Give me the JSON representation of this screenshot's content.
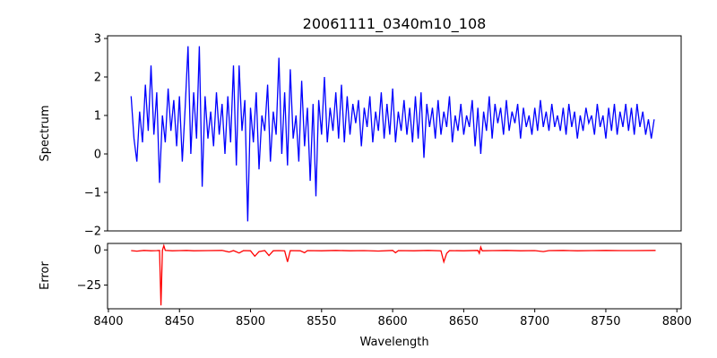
{
  "chart_data": [
    {
      "type": "line",
      "title": "20061111_0340m10_108",
      "xlabel": "",
      "ylabel": "Spectrum",
      "color": "#0000ff",
      "xlim": [
        8399.4,
        8803
      ],
      "ylim": [
        -2.0,
        3.07
      ],
      "yticks": [
        -2,
        -1,
        0,
        1,
        2,
        3
      ],
      "x_start": 8416,
      "x_step": 2,
      "values": [
        1.5,
        0.4,
        -0.2,
        1.1,
        0.3,
        1.8,
        0.6,
        2.3,
        0.5,
        1.6,
        -0.75,
        1.0,
        0.3,
        1.7,
        0.6,
        1.4,
        0.2,
        1.5,
        -0.2,
        1.2,
        2.8,
        0.0,
        1.6,
        0.4,
        2.8,
        -0.85,
        1.5,
        0.4,
        1.1,
        0.2,
        1.6,
        0.5,
        1.3,
        0.0,
        1.5,
        0.3,
        2.3,
        -0.3,
        2.3,
        0.6,
        1.4,
        -1.75,
        1.2,
        0.3,
        1.6,
        -0.4,
        1.0,
        0.6,
        1.8,
        -0.2,
        1.1,
        0.5,
        2.5,
        0.0,
        1.6,
        -0.3,
        2.2,
        0.4,
        1.0,
        -0.2,
        1.9,
        0.2,
        1.2,
        -0.7,
        1.3,
        -1.1,
        1.4,
        0.5,
        2.0,
        0.3,
        1.2,
        0.6,
        1.6,
        0.4,
        1.8,
        0.3,
        1.5,
        0.5,
        1.3,
        0.8,
        1.4,
        0.2,
        1.2,
        0.7,
        1.5,
        0.3,
        1.1,
        0.6,
        1.6,
        0.4,
        1.3,
        0.5,
        1.7,
        0.3,
        1.1,
        0.6,
        1.4,
        0.5,
        1.2,
        0.3,
        1.5,
        0.4,
        1.6,
        -0.1,
        1.3,
        0.7,
        1.2,
        0.4,
        1.4,
        0.5,
        1.1,
        0.7,
        1.5,
        0.3,
        1.0,
        0.6,
        1.3,
        0.5,
        1.0,
        0.7,
        1.4,
        0.2,
        1.2,
        0.0,
        1.1,
        0.6,
        1.5,
        0.4,
        1.3,
        0.8,
        1.2,
        0.5,
        1.4,
        0.6,
        1.1,
        0.8,
        1.3,
        0.4,
        1.2,
        0.7,
        1.0,
        0.5,
        1.2,
        0.6,
        1.4,
        0.7,
        1.1,
        0.6,
        1.3,
        0.7,
        1.0,
        0.6,
        1.2,
        0.5,
        1.3,
        0.7,
        1.1,
        0.4,
        1.0,
        0.6,
        1.2,
        0.8,
        1.0,
        0.5,
        1.3,
        0.7,
        1.0,
        0.4,
        1.2,
        0.6,
        1.3,
        0.5,
        1.1,
        0.7,
        1.3,
        0.6,
        1.2,
        0.5,
        1.3,
        0.7,
        1.1,
        0.5,
        0.9,
        0.4,
        0.9
      ]
    },
    {
      "type": "line",
      "xlabel": "Wavelength",
      "ylabel": "Error",
      "color": "#ff0000",
      "xlim": [
        8399.4,
        8803
      ],
      "ylim": [
        -41.9,
        4.6
      ],
      "yticks": [
        0,
        -25
      ],
      "xticks": [
        8400,
        8450,
        8500,
        8550,
        8600,
        8650,
        8700,
        8750,
        8800
      ],
      "points": [
        [
          8416,
          -0.5
        ],
        [
          8420,
          -0.9
        ],
        [
          8425,
          -0.4
        ],
        [
          8430,
          -0.6
        ],
        [
          8434,
          -0.5
        ],
        [
          8436,
          -0.4
        ],
        [
          8437,
          -39.5
        ],
        [
          8438,
          -0.3
        ],
        [
          8439,
          3.0
        ],
        [
          8440,
          -0.4
        ],
        [
          8445,
          -0.6
        ],
        [
          8450,
          -0.5
        ],
        [
          8455,
          -0.4
        ],
        [
          8460,
          -0.6
        ],
        [
          8470,
          -0.5
        ],
        [
          8480,
          -0.4
        ],
        [
          8485,
          -1.5
        ],
        [
          8488,
          -0.5
        ],
        [
          8492,
          -2.2
        ],
        [
          8495,
          -0.5
        ],
        [
          8500,
          -0.6
        ],
        [
          8503,
          -4.5
        ],
        [
          8506,
          -1.2
        ],
        [
          8510,
          -0.5
        ],
        [
          8513,
          -4.0
        ],
        [
          8516,
          -0.6
        ],
        [
          8520,
          -0.5
        ],
        [
          8524,
          -0.6
        ],
        [
          8526,
          -8.5
        ],
        [
          8528,
          -0.5
        ],
        [
          8535,
          -0.6
        ],
        [
          8538,
          -2.0
        ],
        [
          8540,
          -0.5
        ],
        [
          8550,
          -0.6
        ],
        [
          8560,
          -0.4
        ],
        [
          8570,
          -0.6
        ],
        [
          8580,
          -0.5
        ],
        [
          8590,
          -0.8
        ],
        [
          8600,
          -0.4
        ],
        [
          8602,
          -2.0
        ],
        [
          8604,
          -0.5
        ],
        [
          8615,
          -0.6
        ],
        [
          8625,
          -0.4
        ],
        [
          8634,
          -0.6
        ],
        [
          8636,
          -8.5
        ],
        [
          8638,
          -2.5
        ],
        [
          8640,
          -0.5
        ],
        [
          8650,
          -0.6
        ],
        [
          8660,
          -0.4
        ],
        [
          8661,
          -2.5
        ],
        [
          8662,
          2.0
        ],
        [
          8663,
          -0.6
        ],
        [
          8670,
          -0.5
        ],
        [
          8680,
          -0.4
        ],
        [
          8690,
          -0.6
        ],
        [
          8700,
          -0.5
        ],
        [
          8706,
          -1.2
        ],
        [
          8710,
          -0.5
        ],
        [
          8720,
          -0.4
        ],
        [
          8730,
          -0.6
        ],
        [
          8740,
          -0.5
        ],
        [
          8750,
          -0.4
        ],
        [
          8760,
          -0.5
        ],
        [
          8770,
          -0.5
        ],
        [
          8785,
          -0.4
        ]
      ]
    }
  ]
}
